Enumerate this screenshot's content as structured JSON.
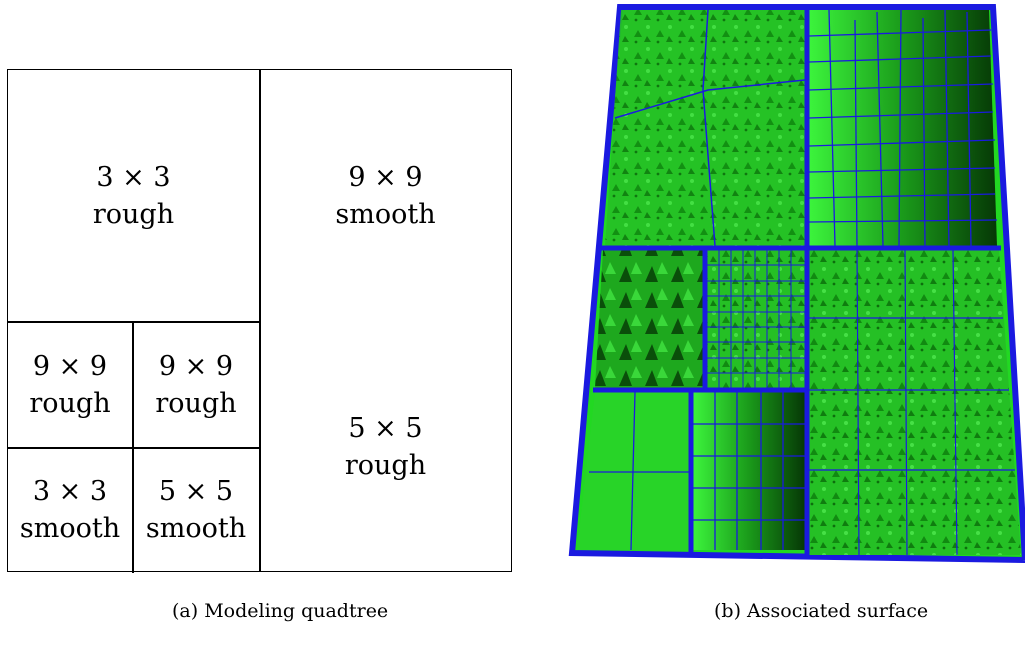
{
  "quadtree": {
    "top_left": {
      "size": "3 × 3",
      "texture": "rough"
    },
    "top_right": {
      "size": "9 × 9",
      "texture": "smooth"
    },
    "mid_left": {
      "size": "9 × 9",
      "texture": "rough"
    },
    "mid_center": {
      "size": "9 × 9",
      "texture": "rough"
    },
    "bottom_left": {
      "size": "3 × 3",
      "texture": "smooth"
    },
    "bottom_center": {
      "size": "5 × 5",
      "texture": "smooth"
    },
    "right_lower": {
      "size": "5 × 5",
      "texture": "rough"
    }
  },
  "captions": {
    "left": "(a) Modeling quadtree",
    "right": "(b) Associated surface"
  },
  "colors": {
    "surface_green": "#22d822",
    "grid_blue": "#1a1ae0",
    "shadow_green": "#0a5a0a"
  }
}
